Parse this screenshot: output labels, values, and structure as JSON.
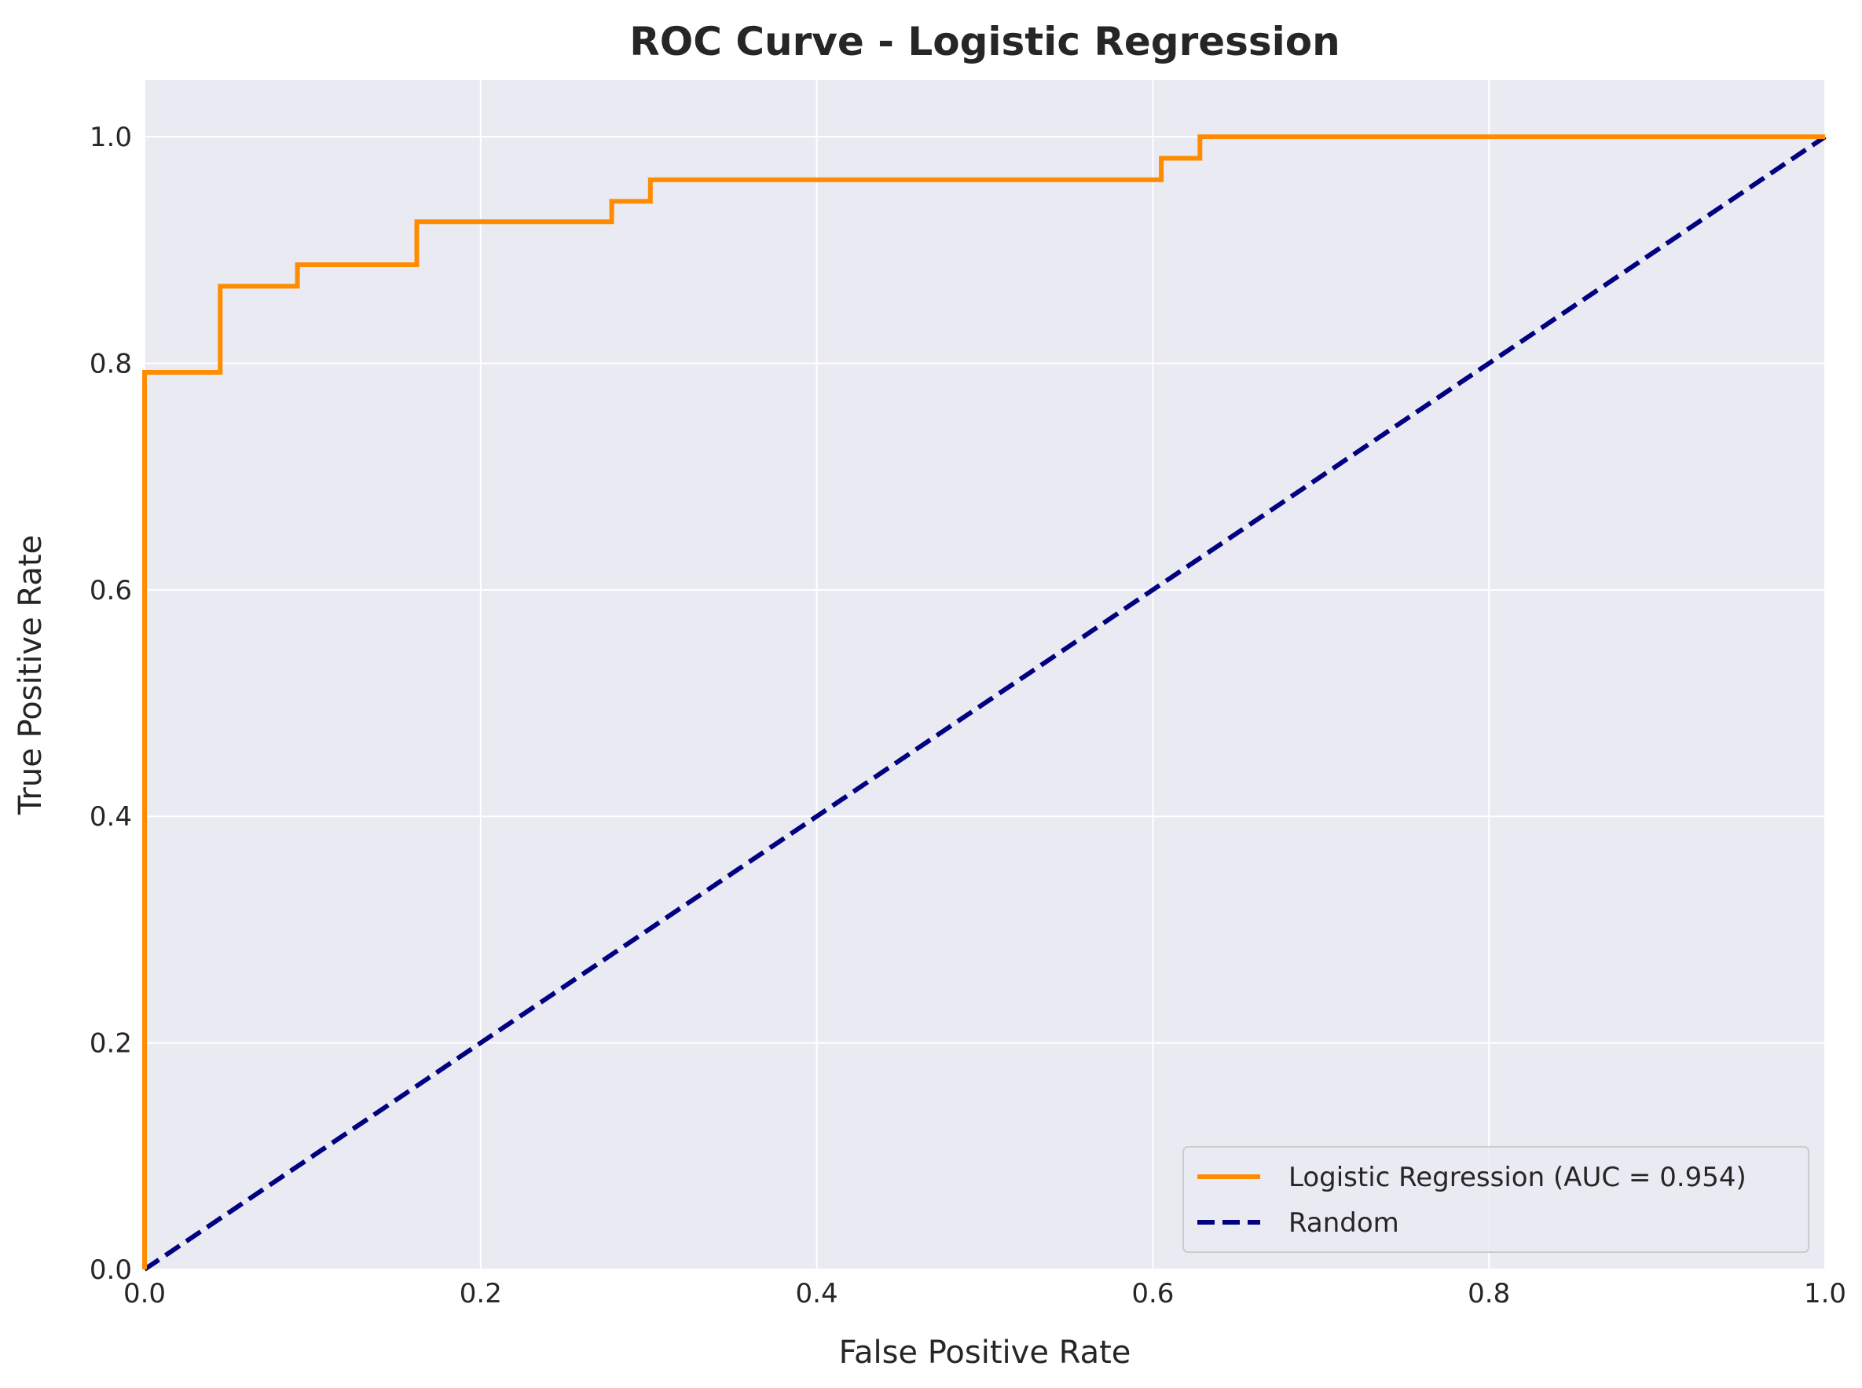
{
  "chart_data": {
    "type": "line",
    "title": "ROC Curve - Logistic Regression",
    "xlabel": "False Positive Rate",
    "ylabel": "True Positive Rate",
    "xlim": [
      0.0,
      1.0
    ],
    "ylim": [
      0.0,
      1.05
    ],
    "xticks": [
      "0.0",
      "0.2",
      "0.4",
      "0.6",
      "0.8",
      "1.0"
    ],
    "yticks": [
      "0.0",
      "0.2",
      "0.4",
      "0.6",
      "0.8",
      "1.0"
    ],
    "grid": true,
    "legend_position": "lower-right",
    "background_color": "#eaeaf2",
    "series": [
      {
        "name": "Logistic Regression (AUC = 0.954)",
        "color": "#ff8c00",
        "style": "solid",
        "x": [
          0.0,
          0.0,
          0.045,
          0.045,
          0.091,
          0.091,
          0.162,
          0.162,
          0.278,
          0.278,
          0.301,
          0.301,
          0.605,
          0.605,
          0.628,
          0.628,
          1.0
        ],
        "y": [
          0.0,
          0.792,
          0.792,
          0.868,
          0.868,
          0.887,
          0.887,
          0.925,
          0.925,
          0.943,
          0.943,
          0.962,
          0.962,
          0.981,
          0.981,
          1.0,
          1.0
        ]
      },
      {
        "name": "Random",
        "color": "#000080",
        "style": "dashed",
        "x": [
          0.0,
          1.0
        ],
        "y": [
          0.0,
          1.0
        ]
      }
    ]
  }
}
